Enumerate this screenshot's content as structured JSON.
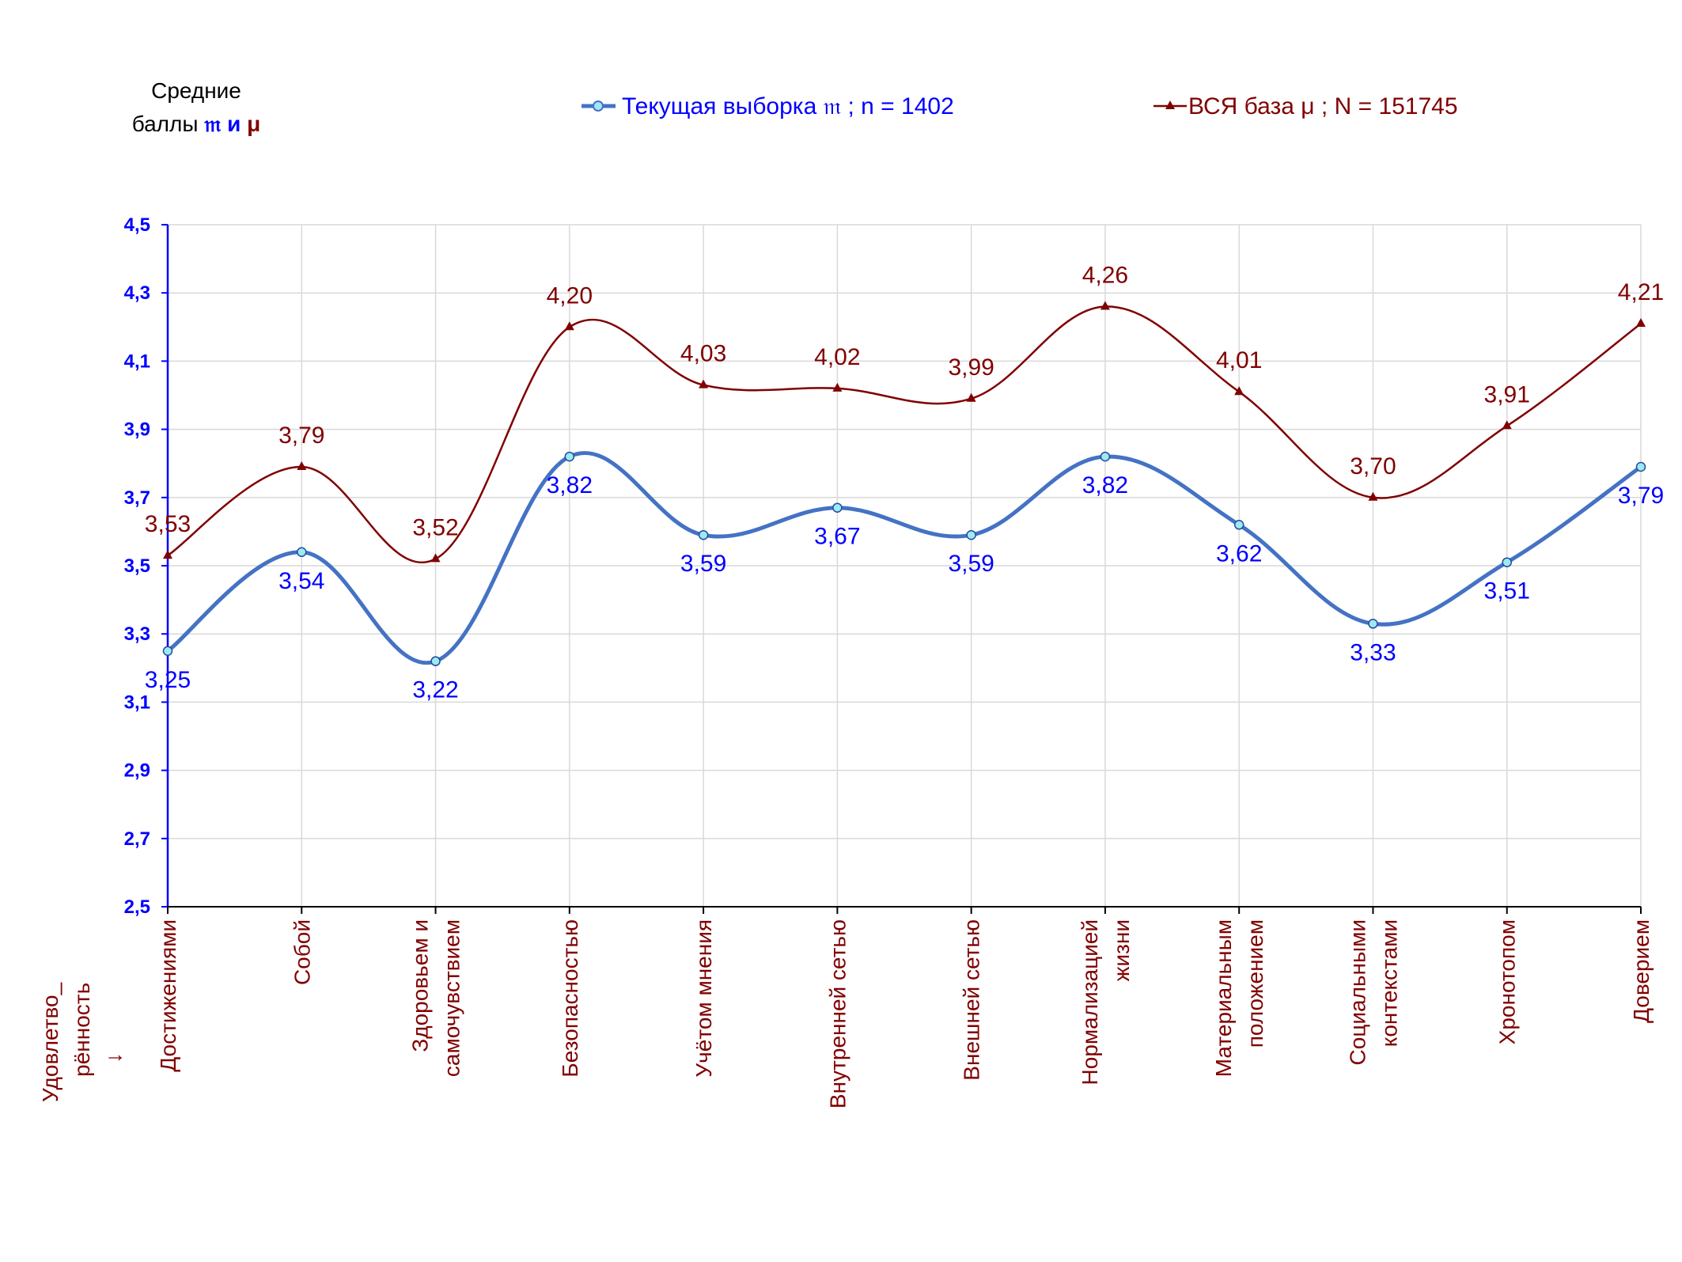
{
  "chart_data": {
    "type": "line",
    "y_axis_title": [
      "Средние",
      "баллы"
    ],
    "y_axis_title_symbols": {
      "m": "𝔪",
      "and": "и",
      "mu": "μ"
    },
    "x_axis_title": [
      "Удовлетво_",
      "рённость",
      "↓"
    ],
    "categories": [
      [
        "Достижениями"
      ],
      [
        "Собой"
      ],
      [
        "Здоровьем и",
        "самочувствием"
      ],
      [
        "Безопасностью"
      ],
      [
        "Учётом мнения"
      ],
      [
        "Внутренней сетью"
      ],
      [
        "Внешней сетью"
      ],
      [
        "Нормализацией",
        "жизни"
      ],
      [
        "Материальным",
        "положением"
      ],
      [
        "Социальными",
        "контекстами"
      ],
      [
        "Хронотопом"
      ],
      [
        "Доверием"
      ]
    ],
    "series": [
      {
        "name": "Текущая выборка 𝔪 ; n = 1402",
        "color": "#4472C4",
        "label_color": "#0000FF",
        "marker": "circle",
        "values": [
          3.25,
          3.54,
          3.22,
          3.82,
          3.59,
          3.67,
          3.59,
          3.82,
          3.62,
          3.33,
          3.51,
          3.79
        ],
        "labels": [
          "3,25",
          "3,54",
          "3,22",
          "3,82",
          "3,59",
          "3,67",
          "3,59",
          "3,82",
          "3,62",
          "3,33",
          "3,51",
          "3,79"
        ]
      },
      {
        "name": "ВСЯ база μ ; N = 151745",
        "color": "#800000",
        "label_color": "#800000",
        "marker": "triangle",
        "values": [
          3.53,
          3.79,
          3.52,
          4.2,
          4.03,
          4.02,
          3.99,
          4.26,
          4.01,
          3.7,
          3.91,
          4.21
        ],
        "labels": [
          "3,53",
          "3,79",
          "3,52",
          "4,20",
          "4,03",
          "4,02",
          "3,99",
          "4,26",
          "4,01",
          "3,70",
          "3,91",
          "4,21"
        ]
      }
    ],
    "ylim": [
      2.5,
      4.5
    ],
    "yticks": [
      2.5,
      2.7,
      2.9,
      3.1,
      3.3,
      3.5,
      3.7,
      3.9,
      4.1,
      4.3,
      4.5
    ],
    "ytick_labels": [
      "2,5",
      "2,7",
      "2,9",
      "3,1",
      "3,3",
      "3,5",
      "3,7",
      "3,9",
      "4,1",
      "4,3",
      "4,5"
    ],
    "grid": true,
    "legend_position": "top"
  }
}
